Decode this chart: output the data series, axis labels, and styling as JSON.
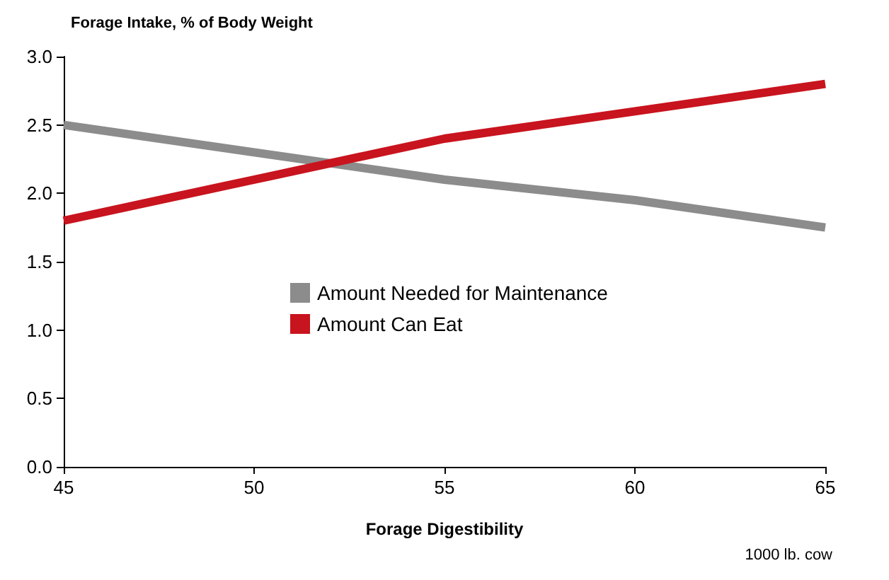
{
  "chart_data": {
    "type": "line",
    "title": "Forage Intake, % of Body Weight",
    "xlabel": "Forage Digestibility",
    "annotations": [
      "1000 lb. cow"
    ],
    "x": [
      45,
      50,
      55,
      60,
      65
    ],
    "series": [
      {
        "name": "Amount Needed for Maintenance",
        "color": "#8c8c8c",
        "values": [
          2.5,
          2.3,
          2.1,
          1.95,
          1.75
        ]
      },
      {
        "name": "Amount Can Eat",
        "color": "#c8141e",
        "values": [
          1.8,
          2.1,
          2.4,
          2.6,
          2.8
        ]
      }
    ],
    "xlim": [
      45,
      65
    ],
    "xticks": [
      45,
      50,
      55,
      60,
      65
    ],
    "ylim": [
      0,
      3
    ],
    "yticks": [
      {
        "value": 0,
        "label": "0.0"
      },
      {
        "value": 0.5,
        "label": "0.5"
      },
      {
        "value": 1,
        "label": "1.0"
      },
      {
        "value": 1.5,
        "label": "1.5"
      },
      {
        "value": 2,
        "label": "2.0"
      },
      {
        "value": 2.5,
        "label": "2.5"
      },
      {
        "value": 3,
        "label": "3.0"
      }
    ],
    "grid": false,
    "legend": "center",
    "marker": "none",
    "line_style": "solid"
  }
}
